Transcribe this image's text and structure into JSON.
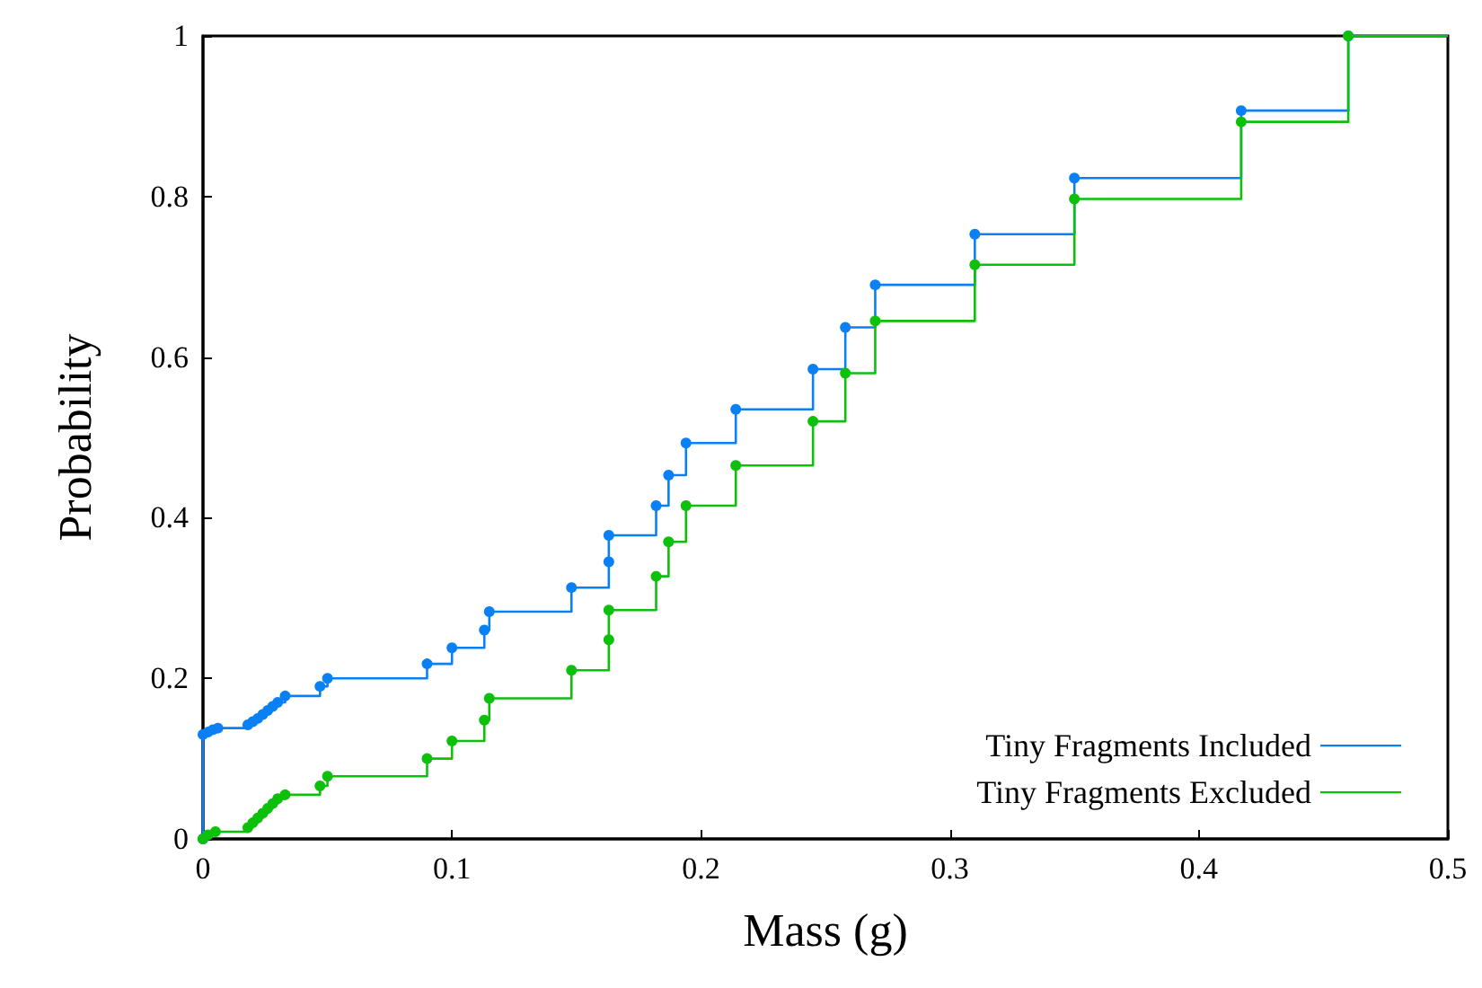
{
  "chart_data": {
    "type": "step",
    "xlabel": "Mass (g)",
    "ylabel": "Probability",
    "xlim": [
      0,
      0.5
    ],
    "xticks": [
      0,
      0.1,
      0.2,
      0.3,
      0.4,
      0.5
    ],
    "ylim": [
      0,
      1
    ],
    "yticks": [
      0,
      0.2,
      0.4,
      0.6,
      0.8,
      1
    ],
    "grid": false,
    "legend": "bottom right",
    "marker": "circle",
    "line_style": "solid",
    "series": [
      {
        "name": "Tiny Fragments Included",
        "color": "#0a80f5",
        "x": [
          0,
          0,
          0.002,
          0.004,
          0.006,
          0.018,
          0.02,
          0.022,
          0.024,
          0.026,
          0.028,
          0.03,
          0.033,
          0.047,
          0.05,
          0.09,
          0.1,
          0.113,
          0.115,
          0.148,
          0.163,
          0.163,
          0.182,
          0.187,
          0.194,
          0.214,
          0.245,
          0.258,
          0.27,
          0.31,
          0.35,
          0.417,
          0.46,
          0.5
        ],
        "values": [
          0,
          0.13,
          0.133,
          0.136,
          0.138,
          0.142,
          0.146,
          0.15,
          0.155,
          0.16,
          0.165,
          0.17,
          0.178,
          0.19,
          0.2,
          0.218,
          0.238,
          0.26,
          0.283,
          0.313,
          0.345,
          0.378,
          0.415,
          0.453,
          0.493,
          0.535,
          0.585,
          0.637,
          0.69,
          0.753,
          0.823,
          0.907,
          1,
          1
        ]
      },
      {
        "name": "Tiny Fragments Excluded",
        "color": "#0cc00c",
        "x": [
          0,
          0.002,
          0.005,
          0.018,
          0.02,
          0.022,
          0.024,
          0.026,
          0.028,
          0.03,
          0.033,
          0.047,
          0.05,
          0.09,
          0.1,
          0.113,
          0.115,
          0.148,
          0.163,
          0.163,
          0.182,
          0.187,
          0.194,
          0.214,
          0.245,
          0.258,
          0.27,
          0.31,
          0.35,
          0.417,
          0.46,
          0.5
        ],
        "values": [
          0,
          0.005,
          0.009,
          0.014,
          0.02,
          0.026,
          0.032,
          0.038,
          0.044,
          0.05,
          0.055,
          0.066,
          0.078,
          0.1,
          0.122,
          0.148,
          0.175,
          0.21,
          0.248,
          0.285,
          0.327,
          0.37,
          0.415,
          0.465,
          0.52,
          0.58,
          0.645,
          0.715,
          0.797,
          0.893,
          1,
          1
        ]
      }
    ]
  }
}
